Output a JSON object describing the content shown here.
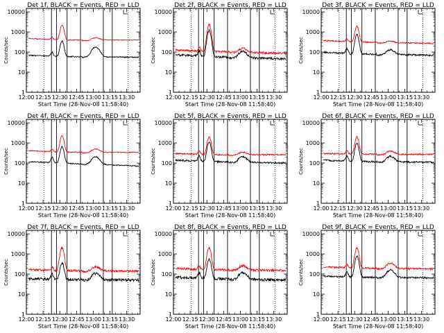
{
  "figure": {
    "xlabel": "Start Time (28-Nov-08 11:58:40)",
    "ylabel": "Counts/sec",
    "x_tick_labels": [
      "12:00",
      "12:15",
      "12:30",
      "12:45",
      "13:00",
      "13:15",
      "13:30"
    ],
    "y_tick_labels": [
      "1",
      "10",
      "100",
      "1000",
      "10000"
    ],
    "colors": {
      "events": "#000000",
      "lld": "#ff0000",
      "frame": "#000000"
    }
  },
  "chart_data": [
    {
      "type": "line",
      "title": "Det 1f, BLACK = Events, RED = LLD",
      "ylim": [
        1,
        15000
      ],
      "series": [
        {
          "color": "#000000",
          "baseline": [
            70,
            60,
            55
          ],
          "flare1": 100,
          "peak": 350,
          "bump": 180,
          "noise": 0.02
        },
        {
          "color": "#ff0000",
          "baseline": [
            480,
            400,
            400
          ],
          "flare1": 550,
          "peak": 2200,
          "bump": 520,
          "noise": 0.015
        }
      ]
    },
    {
      "type": "line",
      "title": "Det 2f, BLACK = Events, RED = LLD",
      "ylim": [
        1,
        15000
      ],
      "series": [
        {
          "color": "#000000",
          "baseline": [
            75,
            60,
            45
          ],
          "flare1": 120,
          "peak": 1200,
          "bump": 110,
          "noise": 0.04
        },
        {
          "color": "#ff0000",
          "baseline": [
            130,
            110,
            85
          ],
          "flare1": 180,
          "peak": 2300,
          "bump": 160,
          "noise": 0.04
        }
      ]
    },
    {
      "type": "line",
      "title": "Det 3f, BLACK = Events, RED = LLD",
      "ylim": [
        1,
        15000
      ],
      "series": [
        {
          "color": "#000000",
          "baseline": [
            100,
            80,
            70
          ],
          "flare1": 150,
          "peak": 750,
          "bump": 130,
          "noise": 0.03
        },
        {
          "color": "#ff0000",
          "baseline": [
            380,
            320,
            270
          ],
          "flare1": 450,
          "peak": 1900,
          "bump": 350,
          "noise": 0.02
        }
      ]
    },
    {
      "type": "line",
      "title": "Det 4f, BLACK = Events, RED = LLD",
      "ylim": [
        1,
        15000
      ],
      "series": [
        {
          "color": "#000000",
          "baseline": [
            120,
            100,
            70
          ],
          "flare1": 200,
          "peak": 650,
          "bump": 210,
          "noise": 0.02
        },
        {
          "color": "#ff0000",
          "baseline": [
            420,
            350,
            340
          ],
          "flare1": 500,
          "peak": 2300,
          "bump": 500,
          "noise": 0.015
        }
      ]
    },
    {
      "type": "line",
      "title": "Det 5f, BLACK = Events, RED = LLD",
      "ylim": [
        1,
        15000
      ],
      "series": [
        {
          "color": "#000000",
          "baseline": [
            140,
            120,
            100
          ],
          "flare1": 230,
          "peak": 1100,
          "bump": 210,
          "noise": 0.03
        },
        {
          "color": "#ff0000",
          "baseline": [
            300,
            260,
            260
          ],
          "flare1": 400,
          "peak": 2000,
          "bump": 350,
          "noise": 0.025
        }
      ]
    },
    {
      "type": "line",
      "title": "Det 6f, BLACK = Events, RED = LLD",
      "ylim": [
        1,
        15000
      ],
      "series": [
        {
          "color": "#000000",
          "baseline": [
            140,
            120,
            110
          ],
          "flare1": 230,
          "peak": 950,
          "bump": 220,
          "noise": 0.03
        },
        {
          "color": "#ff0000",
          "baseline": [
            300,
            280,
            270
          ],
          "flare1": 420,
          "peak": 2000,
          "bump": 400,
          "noise": 0.025
        }
      ]
    },
    {
      "type": "line",
      "title": "Det 7f, BLACK = Events, RED = LLD",
      "ylim": [
        1,
        15000
      ],
      "series": [
        {
          "color": "#000000",
          "baseline": [
            60,
            55,
            50
          ],
          "flare1": 110,
          "peak": 350,
          "bump": 110,
          "noise": 0.05
        },
        {
          "color": "#ff0000",
          "baseline": [
            170,
            150,
            140
          ],
          "flare1": 220,
          "peak": 2100,
          "bump": 230,
          "noise": 0.04
        }
      ]
    },
    {
      "type": "line",
      "title": "Det 8f, BLACK = Events, RED = LLD",
      "ylim": [
        1,
        15000
      ],
      "series": [
        {
          "color": "#000000",
          "baseline": [
            70,
            60,
            50
          ],
          "flare1": 120,
          "peak": 550,
          "bump": 120,
          "noise": 0.05
        },
        {
          "color": "#ff0000",
          "baseline": [
            190,
            170,
            150
          ],
          "flare1": 260,
          "peak": 2000,
          "bump": 260,
          "noise": 0.04
        }
      ]
    },
    {
      "type": "line",
      "title": "Det 9f, BLACK = Events, RED = LLD",
      "ylim": [
        1,
        15000
      ],
      "series": [
        {
          "color": "#000000",
          "baseline": [
            80,
            70,
            65
          ],
          "flare1": 130,
          "peak": 800,
          "bump": 160,
          "noise": 0.03
        },
        {
          "color": "#ff0000",
          "baseline": [
            230,
            200,
            180
          ],
          "flare1": 300,
          "peak": 2000,
          "bump": 350,
          "noise": 0.03
        }
      ]
    }
  ]
}
